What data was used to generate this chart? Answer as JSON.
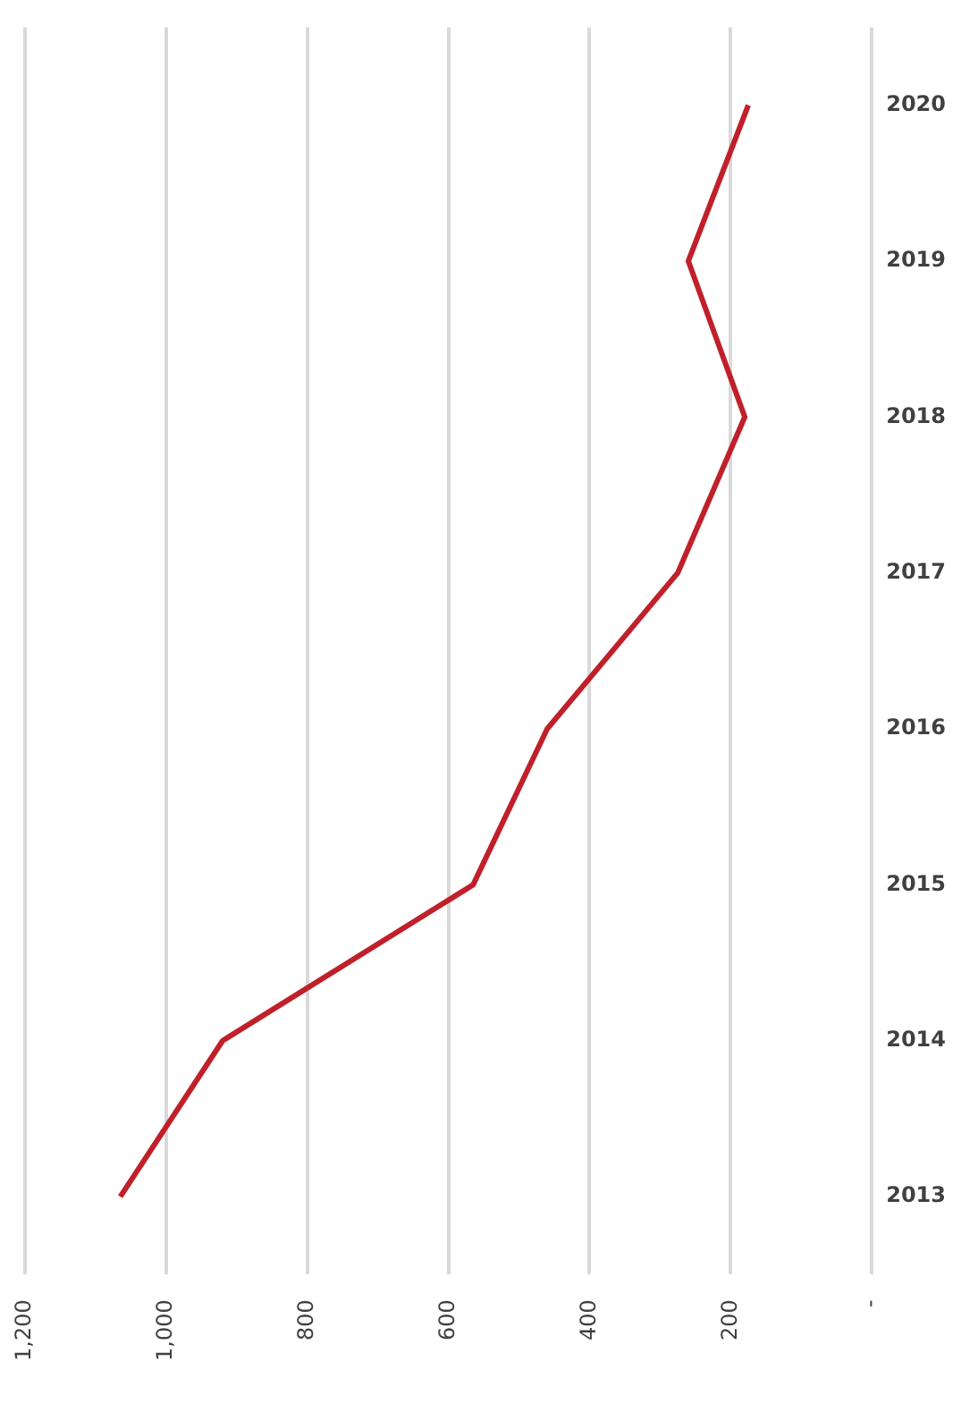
{
  "chart_data": {
    "type": "line",
    "orientation": "horizontal",
    "categories": [
      "2020",
      "2019",
      "2018",
      "2017",
      "2016",
      "2015",
      "2014",
      "2013"
    ],
    "series": [
      {
        "color": "#c0202a",
        "values": [
          175,
          260,
          180,
          275,
          460,
          565,
          920,
          1065
        ]
      }
    ],
    "xlim": [
      1200,
      0
    ],
    "xticks": [
      {
        "value": 0,
        "label": "-"
      },
      200,
      400,
      600,
      800,
      {
        "value": 1000,
        "label": "1,000"
      },
      {
        "value": 1200,
        "label": "1,200"
      }
    ],
    "grid": "x",
    "legend": false,
    "marker": "none",
    "line_style": "solid"
  }
}
